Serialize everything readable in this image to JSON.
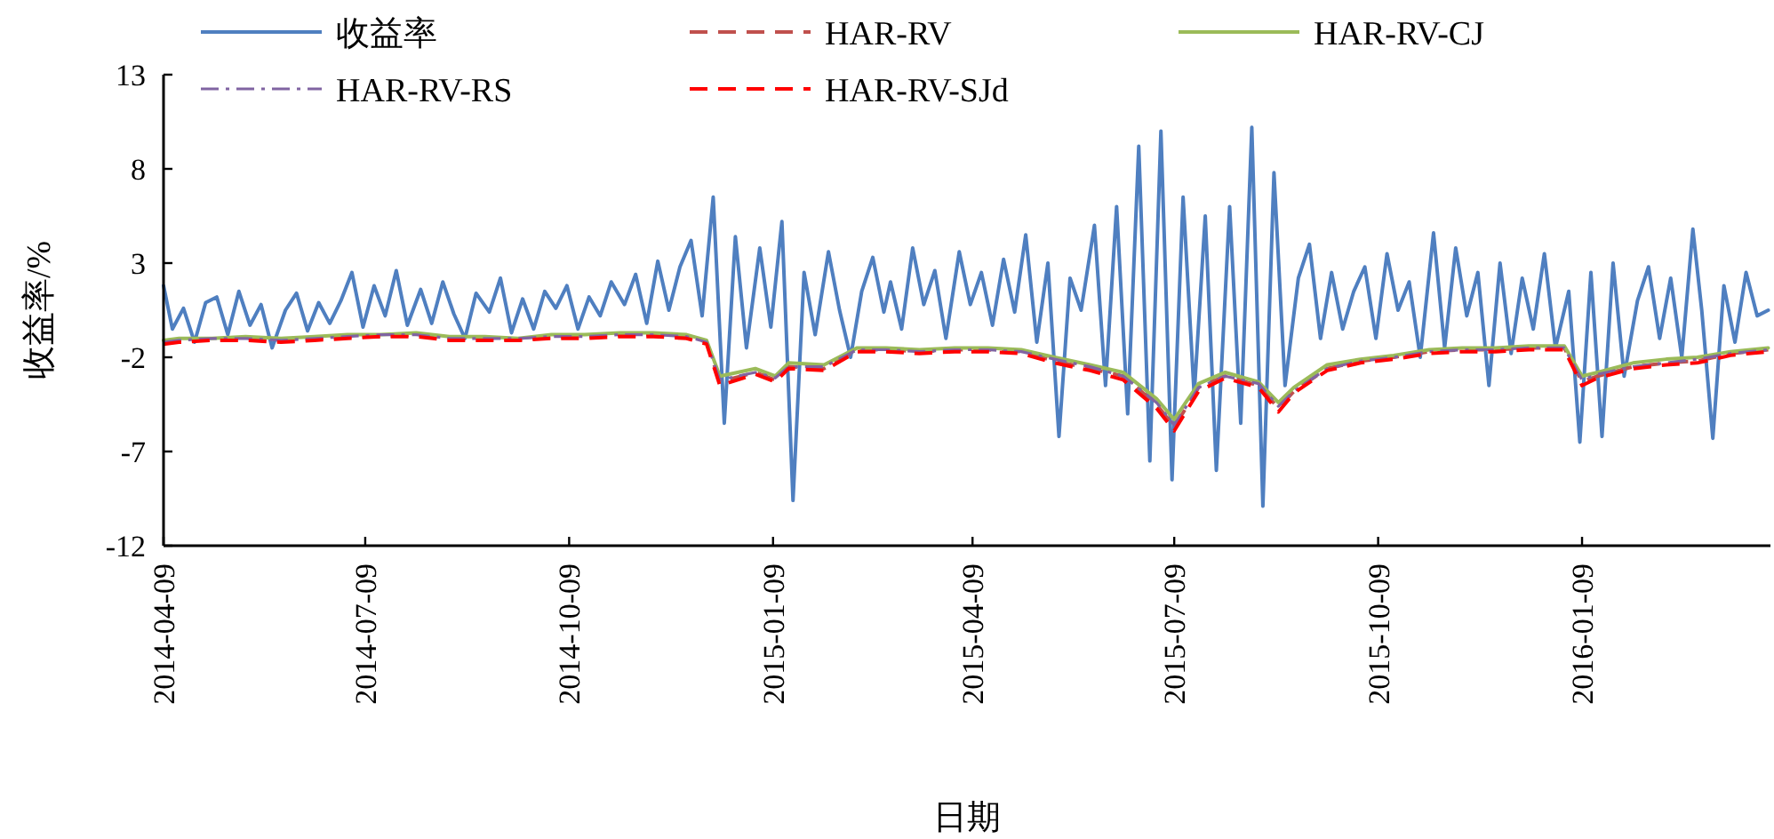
{
  "chart_data": {
    "type": "line",
    "xlabel": "日期",
    "ylabel": "收益率/%",
    "xlim": [
      "2014-04-09",
      "2016-04-03"
    ],
    "ylim": [
      -12,
      13
    ],
    "yticks": [
      -12,
      -7,
      -2,
      3,
      8,
      13
    ],
    "xticks": [
      "2014-04-09",
      "2014-07-09",
      "2014-10-09",
      "2015-01-09",
      "2015-04-09",
      "2015-07-09",
      "2015-10-09",
      "2016-01-09"
    ],
    "grid": false,
    "legend": "top",
    "marker": "none",
    "x": [
      "2014-04-09",
      "2014-04-16",
      "2014-05-01",
      "2014-05-16",
      "2014-06-01",
      "2014-06-16",
      "2014-07-01",
      "2014-07-16",
      "2014-08-01",
      "2014-08-16",
      "2014-09-01",
      "2014-09-16",
      "2014-10-01",
      "2014-10-16",
      "2014-11-01",
      "2014-11-16",
      "2014-12-01",
      "2014-12-10",
      "2014-12-16",
      "2015-01-01",
      "2015-01-10",
      "2015-01-16",
      "2015-02-01",
      "2015-02-16",
      "2015-03-01",
      "2015-03-16",
      "2015-04-01",
      "2015-04-16",
      "2015-05-01",
      "2015-05-16",
      "2015-06-01",
      "2015-06-16",
      "2015-07-01",
      "2015-07-09",
      "2015-07-20",
      "2015-08-01",
      "2015-08-16",
      "2015-08-25",
      "2015-09-01",
      "2015-09-16",
      "2015-10-01",
      "2015-10-16",
      "2015-11-01",
      "2015-11-16",
      "2015-12-01",
      "2015-12-16",
      "2016-01-01",
      "2016-01-09",
      "2016-01-16",
      "2016-02-01",
      "2016-02-16",
      "2016-03-01",
      "2016-03-16",
      "2016-04-02"
    ],
    "series": [
      {
        "name": "收益率",
        "color": "#4f7fc0",
        "line_style": "solid",
        "x": [
          "2014-04-09",
          "2014-04-13",
          "2014-04-18",
          "2014-04-23",
          "2014-04-28",
          "2014-05-03",
          "2014-05-08",
          "2014-05-13",
          "2014-05-18",
          "2014-05-23",
          "2014-05-28",
          "2014-06-03",
          "2014-06-08",
          "2014-06-13",
          "2014-06-18",
          "2014-06-23",
          "2014-06-28",
          "2014-07-03",
          "2014-07-08",
          "2014-07-13",
          "2014-07-18",
          "2014-07-23",
          "2014-07-28",
          "2014-08-03",
          "2014-08-08",
          "2014-08-13",
          "2014-08-18",
          "2014-08-23",
          "2014-08-28",
          "2014-09-03",
          "2014-09-08",
          "2014-09-13",
          "2014-09-18",
          "2014-09-23",
          "2014-09-28",
          "2014-10-03",
          "2014-10-08",
          "2014-10-13",
          "2014-10-18",
          "2014-10-23",
          "2014-10-28",
          "2014-11-03",
          "2014-11-08",
          "2014-11-13",
          "2014-11-18",
          "2014-11-23",
          "2014-11-28",
          "2014-12-03",
          "2014-12-08",
          "2014-12-13",
          "2014-12-18",
          "2014-12-23",
          "2014-12-28",
          "2015-01-03",
          "2015-01-08",
          "2015-01-13",
          "2015-01-18",
          "2015-01-23",
          "2015-01-28",
          "2015-02-03",
          "2015-02-08",
          "2015-02-13",
          "2015-02-18",
          "2015-02-23",
          "2015-02-28",
          "2015-03-03",
          "2015-03-08",
          "2015-03-13",
          "2015-03-18",
          "2015-03-23",
          "2015-03-28",
          "2015-04-03",
          "2015-04-08",
          "2015-04-13",
          "2015-04-18",
          "2015-04-23",
          "2015-04-28",
          "2015-05-03",
          "2015-05-08",
          "2015-05-13",
          "2015-05-18",
          "2015-05-23",
          "2015-05-28",
          "2015-06-03",
          "2015-06-08",
          "2015-06-13",
          "2015-06-18",
          "2015-06-23",
          "2015-06-28",
          "2015-07-03",
          "2015-07-08",
          "2015-07-13",
          "2015-07-18",
          "2015-07-23",
          "2015-07-28",
          "2015-08-03",
          "2015-08-08",
          "2015-08-13",
          "2015-08-18",
          "2015-08-23",
          "2015-08-28",
          "2015-09-03",
          "2015-09-08",
          "2015-09-13",
          "2015-09-18",
          "2015-09-23",
          "2015-09-28",
          "2015-10-03",
          "2015-10-08",
          "2015-10-13",
          "2015-10-18",
          "2015-10-23",
          "2015-10-28",
          "2015-11-03",
          "2015-11-08",
          "2015-11-13",
          "2015-11-18",
          "2015-11-23",
          "2015-11-28",
          "2015-12-03",
          "2015-12-08",
          "2015-12-13",
          "2015-12-18",
          "2015-12-23",
          "2015-12-28",
          "2016-01-03",
          "2016-01-08",
          "2016-01-13",
          "2016-01-18",
          "2016-01-23",
          "2016-01-28",
          "2016-02-03",
          "2016-02-08",
          "2016-02-13",
          "2016-02-18",
          "2016-02-23",
          "2016-02-28",
          "2016-03-03",
          "2016-03-08",
          "2016-03-13",
          "2016-03-18",
          "2016-03-23",
          "2016-03-28",
          "2016-04-02"
        ],
        "values": [
          1.8,
          -0.5,
          0.6,
          -1.2,
          0.9,
          1.2,
          -0.8,
          1.5,
          -0.3,
          0.8,
          -1.5,
          0.5,
          1.4,
          -0.6,
          0.9,
          -0.2,
          1.0,
          2.5,
          -0.4,
          1.8,
          0.2,
          2.6,
          -0.3,
          1.6,
          -0.2,
          2.0,
          0.3,
          -1.0,
          1.4,
          0.4,
          2.2,
          -0.7,
          1.1,
          -0.5,
          1.5,
          0.6,
          1.8,
          -0.5,
          1.2,
          0.2,
          2.0,
          0.8,
          2.4,
          -0.2,
          3.1,
          0.5,
          2.8,
          4.2,
          0.2,
          6.5,
          -5.5,
          4.4,
          -1.5,
          3.8,
          -0.4,
          5.2,
          -9.6,
          2.5,
          -0.8,
          3.6,
          0.5,
          -2.0,
          1.5,
          3.3,
          0.4,
          2.0,
          -0.5,
          3.8,
          0.8,
          2.6,
          -1.0,
          3.6,
          0.8,
          2.5,
          -0.3,
          3.2,
          0.4,
          4.5,
          -1.2,
          3.0,
          -6.2,
          2.2,
          0.5,
          5.0,
          -3.5,
          6.0,
          -5.0,
          9.2,
          -7.5,
          10.0,
          -8.5,
          6.5,
          -4.0,
          5.5,
          -8.0,
          6.0,
          -5.5,
          10.2,
          -9.9,
          7.8,
          -3.5,
          2.2,
          4.0,
          -1.0,
          2.5,
          -0.5,
          1.5,
          2.8,
          -1.0,
          3.5,
          0.5,
          2.0,
          -2.0,
          4.6,
          -1.5,
          3.8,
          0.2,
          2.5,
          -3.5,
          3.0,
          -1.8,
          2.2,
          -0.5,
          3.5,
          -1.5,
          1.5,
          -6.5,
          2.5,
          -6.2,
          3.0,
          -3.0,
          1.0,
          2.8,
          -1.0,
          2.2,
          -2.0,
          4.8,
          0.5,
          -6.3,
          1.8,
          -1.2,
          2.5,
          0.2,
          0.5
        ]
      },
      {
        "name": "HAR-RV",
        "color": "#c0504d",
        "line_style": "dashed",
        "values": [
          -1.2,
          -1.1,
          -1.1,
          -1.0,
          -1.1,
          -1.0,
          -0.9,
          -0.9,
          -0.8,
          -1.0,
          -1.0,
          -1.1,
          -0.9,
          -0.9,
          -0.8,
          -0.8,
          -0.9,
          -1.2,
          -3.3,
          -2.8,
          -3.2,
          -2.5,
          -2.6,
          -1.6,
          -1.6,
          -1.7,
          -1.6,
          -1.6,
          -1.7,
          -2.2,
          -2.6,
          -3.0,
          -4.5,
          -5.7,
          -3.6,
          -3.0,
          -3.5,
          -4.7,
          -3.8,
          -2.6,
          -2.2,
          -2.0,
          -1.7,
          -1.6,
          -1.6,
          -1.5,
          -1.5,
          -3.3,
          -3.0,
          -2.5,
          -2.3,
          -2.2,
          -1.8,
          -1.6
        ]
      },
      {
        "name": "HAR-RV-CJ",
        "color": "#9bbb59",
        "line_style": "solid",
        "values": [
          -1.1,
          -1.0,
          -1.0,
          -0.9,
          -1.0,
          -0.9,
          -0.8,
          -0.8,
          -0.7,
          -0.9,
          -0.9,
          -1.0,
          -0.8,
          -0.8,
          -0.7,
          -0.7,
          -0.8,
          -1.1,
          -3.0,
          -2.6,
          -3.0,
          -2.3,
          -2.4,
          -1.5,
          -1.5,
          -1.6,
          -1.5,
          -1.5,
          -1.6,
          -2.0,
          -2.4,
          -2.8,
          -4.2,
          -5.3,
          -3.4,
          -2.8,
          -3.3,
          -4.4,
          -3.6,
          -2.4,
          -2.1,
          -1.9,
          -1.6,
          -1.5,
          -1.5,
          -1.4,
          -1.4,
          -3.0,
          -2.8,
          -2.3,
          -2.1,
          -2.0,
          -1.7,
          -1.5
        ]
      },
      {
        "name": "HAR-RV-RS",
        "color": "#8064a2",
        "line_style": "dashdot",
        "values": [
          -1.2,
          -1.1,
          -1.0,
          -1.0,
          -1.1,
          -1.0,
          -0.9,
          -0.8,
          -0.8,
          -1.0,
          -1.0,
          -1.0,
          -0.9,
          -0.9,
          -0.8,
          -0.8,
          -0.9,
          -1.2,
          -3.2,
          -2.8,
          -3.1,
          -2.5,
          -2.5,
          -1.6,
          -1.6,
          -1.7,
          -1.6,
          -1.6,
          -1.7,
          -2.1,
          -2.5,
          -3.0,
          -4.4,
          -5.6,
          -3.6,
          -3.0,
          -3.4,
          -4.6,
          -3.8,
          -2.6,
          -2.2,
          -2.0,
          -1.7,
          -1.6,
          -1.6,
          -1.5,
          -1.5,
          -3.2,
          -2.9,
          -2.5,
          -2.3,
          -2.1,
          -1.8,
          -1.6
        ]
      },
      {
        "name": "HAR-RV-SJd",
        "color": "#ff0000",
        "line_style": "dashed",
        "values": [
          -1.3,
          -1.2,
          -1.1,
          -1.1,
          -1.2,
          -1.1,
          -1.0,
          -0.9,
          -0.9,
          -1.1,
          -1.1,
          -1.1,
          -1.0,
          -1.0,
          -0.9,
          -0.9,
          -1.0,
          -1.3,
          -3.5,
          -2.9,
          -3.3,
          -2.6,
          -2.7,
          -1.7,
          -1.7,
          -1.8,
          -1.7,
          -1.7,
          -1.8,
          -2.3,
          -2.7,
          -3.2,
          -4.7,
          -5.9,
          -3.8,
          -3.1,
          -3.6,
          -4.9,
          -3.9,
          -2.7,
          -2.3,
          -2.1,
          -1.8,
          -1.7,
          -1.7,
          -1.6,
          -1.6,
          -3.5,
          -3.1,
          -2.6,
          -2.4,
          -2.3,
          -1.9,
          -1.7
        ]
      }
    ]
  }
}
